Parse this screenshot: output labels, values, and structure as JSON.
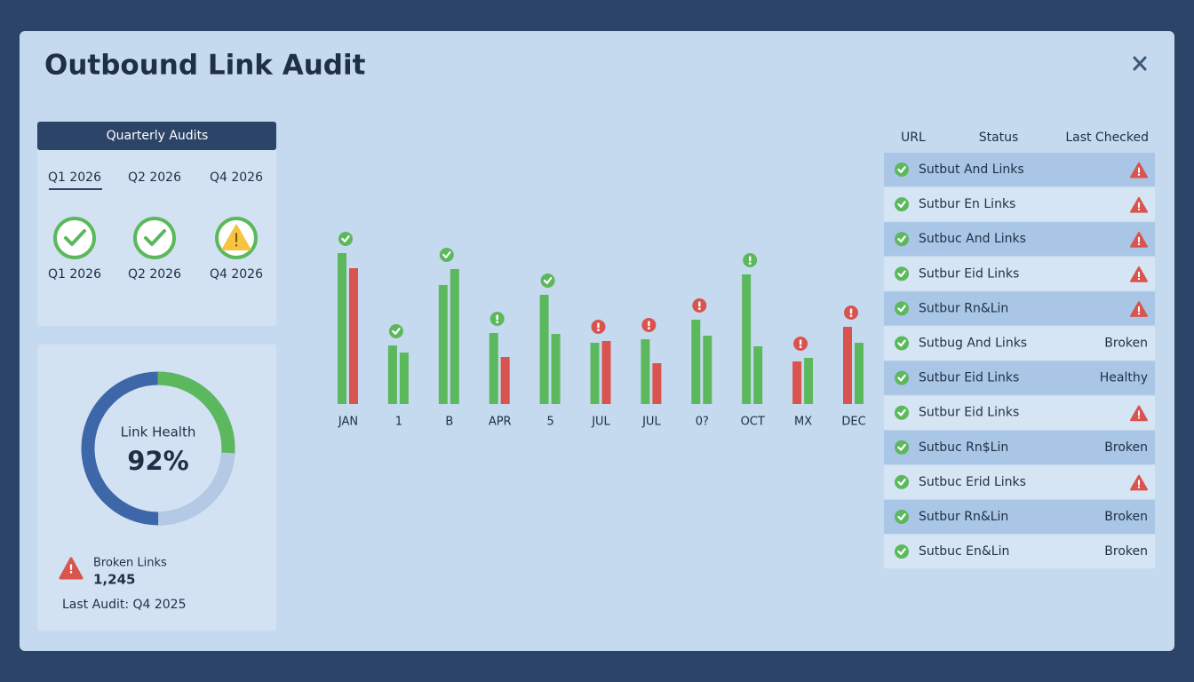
{
  "header": {
    "title": "Outbound Link Audit"
  },
  "quarterly": {
    "title": "Quarterly Audits",
    "tabs": [
      "Q1 2026",
      "Q2 2026",
      "Q4 2026"
    ],
    "items": [
      {
        "label": "Q1 2026",
        "icon": "check"
      },
      {
        "label": "Q2 2026",
        "icon": "check"
      },
      {
        "label": "Q4 2026",
        "icon": "warning"
      }
    ]
  },
  "health": {
    "label": "Link Health",
    "value": "92%",
    "broken_label": "Broken Links",
    "broken_value": "1,245",
    "last_audit": "Last Audit: Q4 2025"
  },
  "chart": {
    "type": "bar",
    "categories": [
      "JAN",
      "1",
      "B",
      "APR",
      "5",
      "JUL",
      "JUL",
      "0?",
      "OCT",
      "MX",
      "DEC"
    ],
    "values": [
      [
        170,
        153
      ],
      [
        66,
        58
      ],
      [
        134,
        152
      ],
      [
        80,
        53
      ],
      [
        123,
        79
      ],
      [
        69,
        71
      ],
      [
        73,
        46
      ],
      [
        95,
        77
      ],
      [
        146,
        65
      ],
      [
        48,
        52
      ],
      [
        87,
        69
      ]
    ],
    "colors": [
      [
        "#5cb85c",
        "#d9534f"
      ],
      [
        "#5cb85c",
        "#5cb85c"
      ],
      [
        "#5cb85c",
        "#5cb85c"
      ],
      [
        "#5cb85c",
        "#d9534f"
      ],
      [
        "#5cb85c",
        "#5cb85c"
      ],
      [
        "#5cb85c",
        "#d9534f"
      ],
      [
        "#5cb85c",
        "#d9534f"
      ],
      [
        "#5cb85c",
        "#5cb85c"
      ],
      [
        "#5cb85c",
        "#5cb85c"
      ],
      [
        "#d9534f",
        "#5cb85c"
      ],
      [
        "#d9534f",
        "#5cb85c"
      ]
    ],
    "markers": [
      "check",
      "check",
      "check",
      "green-alert",
      "check",
      "red-alert",
      "red-alert",
      "red-alert",
      "green-alert",
      "red-alert",
      "red-alert"
    ]
  },
  "table": {
    "columns": [
      "URL",
      "Status",
      "Last Checked"
    ],
    "rows": [
      {
        "url": "Sutbut And Links",
        "icon": "warning"
      },
      {
        "url": "Sutbur En Links",
        "icon": "warning"
      },
      {
        "url": "Sutbuc And Links",
        "icon": "warning"
      },
      {
        "url": "Sutbur Eid Links",
        "icon": "warning"
      },
      {
        "url": "Sutbur Rn&Lin",
        "icon": "warning"
      },
      {
        "url": "Sutbug And Links",
        "last": "Broken"
      },
      {
        "url": "Sutbur Eid Links",
        "last": "Healthy"
      },
      {
        "url": "Sutbur Eid Links",
        "icon": "warning"
      },
      {
        "url": "Sutbuc Rn$Lin",
        "last": "Broken"
      },
      {
        "url": "Sutbuc Erid Links",
        "icon": "warning"
      },
      {
        "url": "Sutbur Rn&Lin",
        "last": "Broken"
      },
      {
        "url": "Sutbuc En&Lin",
        "last": "Broken"
      }
    ]
  }
}
